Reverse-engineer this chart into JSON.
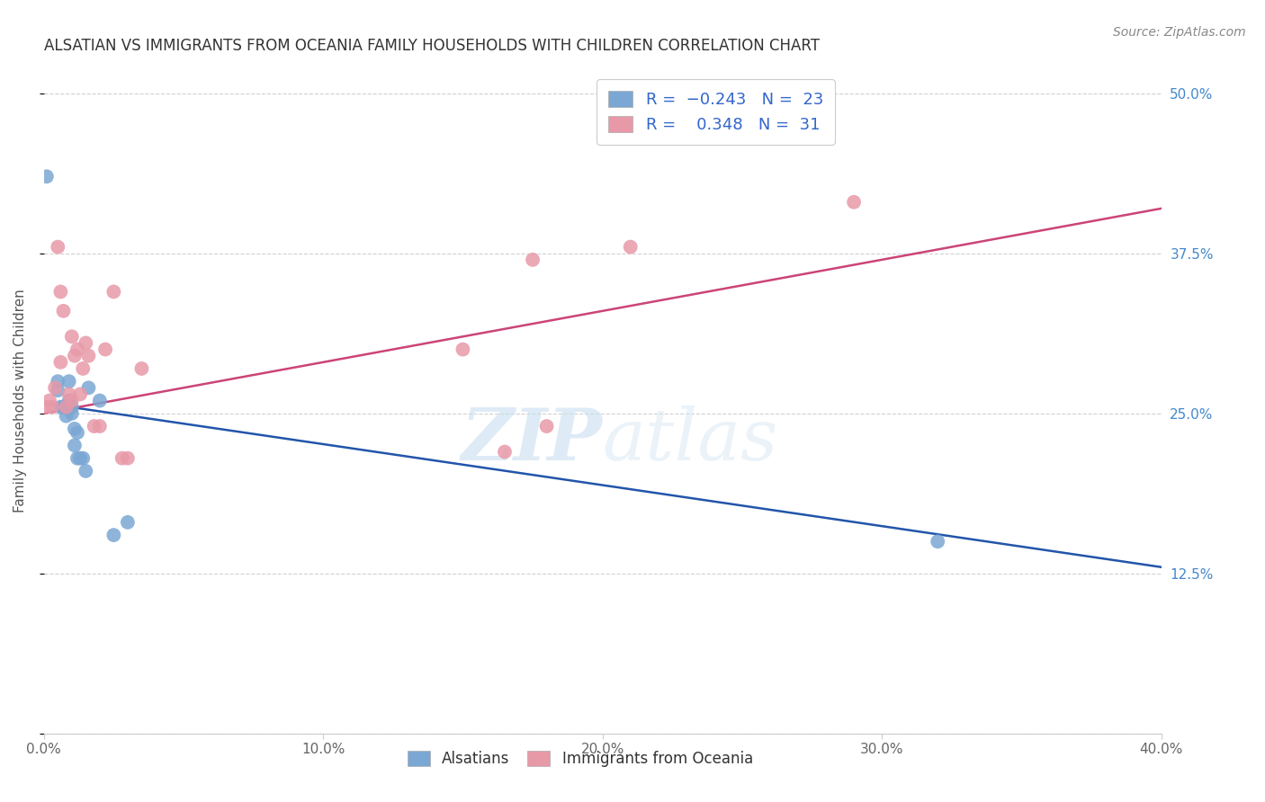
{
  "title": "ALSATIAN VS IMMIGRANTS FROM OCEANIA FAMILY HOUSEHOLDS WITH CHILDREN CORRELATION CHART",
  "source": "Source: ZipAtlas.com",
  "ylabel": "Family Households with Children",
  "ytick_values": [
    0.0,
    0.125,
    0.25,
    0.375,
    0.5
  ],
  "ytick_labels": [
    "",
    "12.5%",
    "25.0%",
    "37.5%",
    "50.0%"
  ],
  "xtick_values": [
    0.0,
    0.1,
    0.2,
    0.3,
    0.4
  ],
  "xtick_labels": [
    "0.0%",
    "10.0%",
    "20.0%",
    "30.0%",
    "40.0%"
  ],
  "xlim": [
    0.0,
    0.4
  ],
  "ylim": [
    0.0,
    0.52
  ],
  "grid_color": "#cccccc",
  "background_color": "#ffffff",
  "watermark_zip": "ZIP",
  "watermark_atlas": "atlas",
  "series": [
    {
      "name": "Alsatians",
      "color": "#7ba7d4",
      "R": -0.243,
      "N": 23,
      "x": [
        0.001,
        0.005,
        0.005,
        0.006,
        0.007,
        0.008,
        0.008,
        0.009,
        0.009,
        0.01,
        0.01,
        0.011,
        0.011,
        0.012,
        0.012,
        0.013,
        0.014,
        0.015,
        0.016,
        0.02,
        0.025,
        0.03,
        0.32
      ],
      "y": [
        0.435,
        0.275,
        0.268,
        0.255,
        0.255,
        0.255,
        0.248,
        0.275,
        0.26,
        0.255,
        0.25,
        0.238,
        0.225,
        0.235,
        0.215,
        0.215,
        0.215,
        0.205,
        0.27,
        0.26,
        0.155,
        0.165,
        0.15
      ],
      "line_color": "#2255aa",
      "line_x": [
        0.0,
        0.4
      ],
      "line_y": [
        0.258,
        0.13
      ]
    },
    {
      "name": "Immigrants from Oceania",
      "color": "#e899a8",
      "R": 0.348,
      "N": 31,
      "x": [
        0.001,
        0.002,
        0.003,
        0.004,
        0.005,
        0.006,
        0.006,
        0.007,
        0.008,
        0.009,
        0.01,
        0.01,
        0.011,
        0.012,
        0.013,
        0.014,
        0.015,
        0.016,
        0.018,
        0.02,
        0.022,
        0.025,
        0.028,
        0.03,
        0.035,
        0.15,
        0.165,
        0.175,
        0.18,
        0.21,
        0.29
      ],
      "y": [
        0.255,
        0.26,
        0.255,
        0.27,
        0.38,
        0.29,
        0.345,
        0.33,
        0.255,
        0.265,
        0.26,
        0.31,
        0.295,
        0.3,
        0.265,
        0.285,
        0.305,
        0.295,
        0.24,
        0.24,
        0.3,
        0.345,
        0.215,
        0.215,
        0.285,
        0.3,
        0.22,
        0.37,
        0.24,
        0.38,
        0.415
      ],
      "line_color": "#cc4477",
      "line_x": [
        0.0,
        0.4
      ],
      "line_y": [
        0.25,
        0.41
      ]
    }
  ],
  "legend_r_color": "#3366cc",
  "legend_n_color": "#3366cc",
  "legend_r_label": "R =",
  "title_fontsize": 12,
  "source_fontsize": 10,
  "tick_fontsize": 11,
  "ylabel_fontsize": 11
}
